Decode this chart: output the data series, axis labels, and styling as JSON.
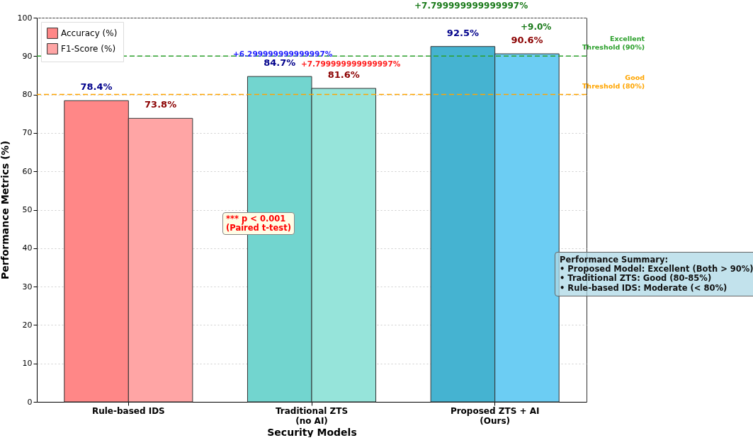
{
  "chart_data": {
    "type": "bar",
    "xlabel": "Security Models",
    "ylabel": "Performance Metrics (%)",
    "categories": [
      "Rule-based IDS",
      "Traditional ZTS\n(no AI)",
      "Proposed ZTS + AI\n(Ours)"
    ],
    "series": [
      {
        "name": "Accuracy (%)",
        "color": "#ff8787",
        "colors": [
          "#ff8787",
          "#72d5cf",
          "#45b3d1"
        ],
        "values": [
          78.4,
          84.7,
          92.5
        ],
        "value_labels": [
          "78.4%",
          "84.7%",
          "92.5%"
        ]
      },
      {
        "name": "F1-Score (%)",
        "color": "#ffa5a5",
        "colors": [
          "#ffa5a5",
          "#96e4da",
          "#6ccdf3"
        ],
        "values": [
          73.8,
          81.6,
          90.6
        ],
        "value_labels": [
          "73.8%",
          "81.6%",
          "90.6%"
        ]
      }
    ],
    "ylim": [
      0,
      100
    ],
    "yticks": [
      0,
      10,
      20,
      30,
      40,
      50,
      60,
      70,
      80,
      90,
      100
    ],
    "grid": "y",
    "legend": "top left",
    "ref_lines": [
      {
        "axis": "y",
        "value": 90,
        "label": "Excellent\nThreshold (90%)",
        "color": "#2ca02c",
        "line_style": "dashed"
      },
      {
        "axis": "y",
        "value": 80,
        "label": "Good\nThreshold (80%)",
        "color": "#ffa500",
        "line_style": "dashed"
      }
    ],
    "annotations": [
      "+6.299999999999997%",
      "+7.799999999999997%",
      "+7.799999999999997%",
      "+9.0%",
      "*** p < 0.001\n(Paired t-test)",
      "Performance Summary:\n• Proposed Model: Excellent (Both > 90%)\n• Traditional ZTS: Good (80-85%)\n• Rule-based IDS: Moderate (< 80%)"
    ]
  }
}
